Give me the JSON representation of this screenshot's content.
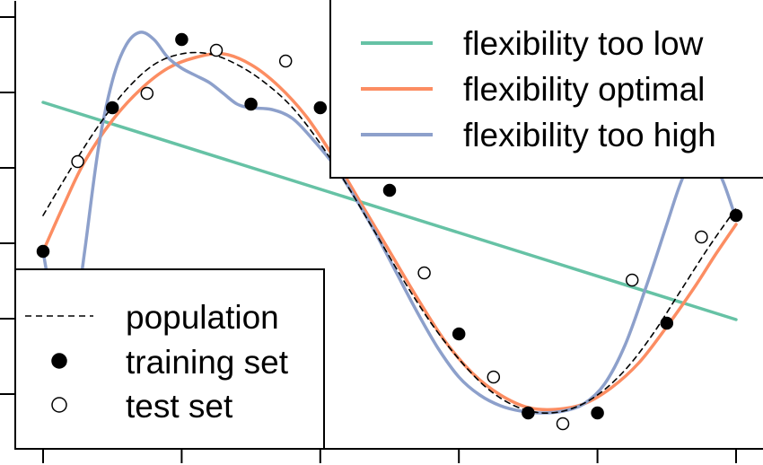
{
  "chart_data": {
    "type": "line",
    "title": "",
    "xlabel": "",
    "ylabel": "",
    "xlim": [
      -0.03,
      1.07
    ],
    "ylim": [
      -1.22,
      1.22
    ],
    "x_ticks": [
      0,
      0.2,
      0.4,
      0.6,
      0.8,
      1.0
    ],
    "y_ticks": [
      -1.0,
      -0.6,
      -0.2,
      0.2,
      0.6,
      1.0
    ],
    "grid": false,
    "series": [
      {
        "name": "flexibility too low",
        "style": "line",
        "color": "#66c2a5",
        "x": [
          0,
          1
        ],
        "y": [
          0.73,
          -0.48
        ]
      },
      {
        "name": "flexibility optimal",
        "style": "line",
        "color": "#fc8d62",
        "x": [
          0,
          0.03,
          0.06,
          0.1,
          0.14,
          0.18,
          0.22,
          0.26,
          0.3,
          0.34,
          0.38,
          0.42,
          0.46,
          0.5,
          0.54,
          0.58,
          0.62,
          0.66,
          0.7,
          0.74,
          0.78,
          0.82,
          0.86,
          0.9,
          0.94,
          0.97,
          1.0
        ],
        "y": [
          -0.1,
          0.16,
          0.4,
          0.63,
          0.8,
          0.92,
          0.98,
          1.0,
          0.94,
          0.82,
          0.65,
          0.42,
          0.16,
          -0.1,
          -0.36,
          -0.6,
          -0.78,
          -0.9,
          -0.97,
          -0.98,
          -0.95,
          -0.86,
          -0.72,
          -0.52,
          -0.3,
          -0.12,
          0.05
        ]
      },
      {
        "name": "flexibility too high",
        "style": "line",
        "color": "#8da0cb",
        "x": [
          0,
          0.015,
          0.03,
          0.045,
          0.06,
          0.08,
          0.1,
          0.12,
          0.14,
          0.16,
          0.18,
          0.2,
          0.22,
          0.24,
          0.26,
          0.28,
          0.3,
          0.33,
          0.36,
          0.39,
          0.42,
          0.45,
          0.48,
          0.51,
          0.54,
          0.57,
          0.6,
          0.63,
          0.66,
          0.69,
          0.72,
          0.75,
          0.78,
          0.81,
          0.84,
          0.87,
          0.9,
          0.92,
          0.94,
          0.96,
          0.98,
          1.0
        ],
        "y": [
          -0.1,
          -0.42,
          -0.6,
          -0.5,
          -0.1,
          0.48,
          0.85,
          1.05,
          1.12,
          1.08,
          0.98,
          0.92,
          0.88,
          0.84,
          0.78,
          0.72,
          0.7,
          0.69,
          0.64,
          0.52,
          0.38,
          0.2,
          0.0,
          -0.22,
          -0.44,
          -0.64,
          -0.8,
          -0.9,
          -0.96,
          -0.99,
          -1.0,
          -0.99,
          -0.95,
          -0.84,
          -0.62,
          -0.3,
          0.05,
          0.28,
          0.44,
          0.42,
          0.3,
          0.08
        ]
      },
      {
        "name": "population",
        "style": "dashed",
        "color": "#000000",
        "x": [
          0,
          0.04,
          0.08,
          0.12,
          0.16,
          0.2,
          0.24,
          0.28,
          0.32,
          0.36,
          0.4,
          0.44,
          0.48,
          0.52,
          0.56,
          0.6,
          0.64,
          0.68,
          0.72,
          0.76,
          0.8,
          0.84,
          0.88,
          0.92,
          0.96,
          1.0
        ],
        "y": [
          0.1,
          0.36,
          0.6,
          0.8,
          0.94,
          1.0,
          1.0,
          0.94,
          0.84,
          0.7,
          0.5,
          0.26,
          0.0,
          -0.26,
          -0.5,
          -0.7,
          -0.86,
          -0.96,
          -1.0,
          -0.98,
          -0.9,
          -0.76,
          -0.56,
          -0.32,
          -0.08,
          0.14
        ]
      },
      {
        "name": "training set",
        "style": "points-filled",
        "color": "#000000",
        "x": [
          0,
          0.1,
          0.2,
          0.3,
          0.4,
          0.5,
          0.6,
          0.7,
          0.8,
          0.9,
          1.0
        ],
        "y": [
          -0.1,
          0.7,
          1.08,
          0.72,
          0.7,
          0.24,
          -0.56,
          -1.0,
          -1.0,
          -0.5,
          0.1
        ]
      },
      {
        "name": "test set",
        "style": "points-open",
        "color": "#000000",
        "x": [
          0.05,
          0.15,
          0.25,
          0.35,
          0.45,
          0.55,
          0.65,
          0.75,
          0.85,
          0.95
        ],
        "y": [
          0.4,
          0.78,
          1.02,
          0.96,
          0.5,
          -0.22,
          -0.8,
          -1.06,
          -0.26,
          -0.02
        ]
      }
    ],
    "legends": [
      {
        "position": "top-right",
        "entries": [
          "flexibility too low",
          "flexibility optimal",
          "flexibility too high"
        ]
      },
      {
        "position": "bottom-left",
        "entries": [
          "population",
          "training set",
          "test set"
        ]
      }
    ]
  }
}
